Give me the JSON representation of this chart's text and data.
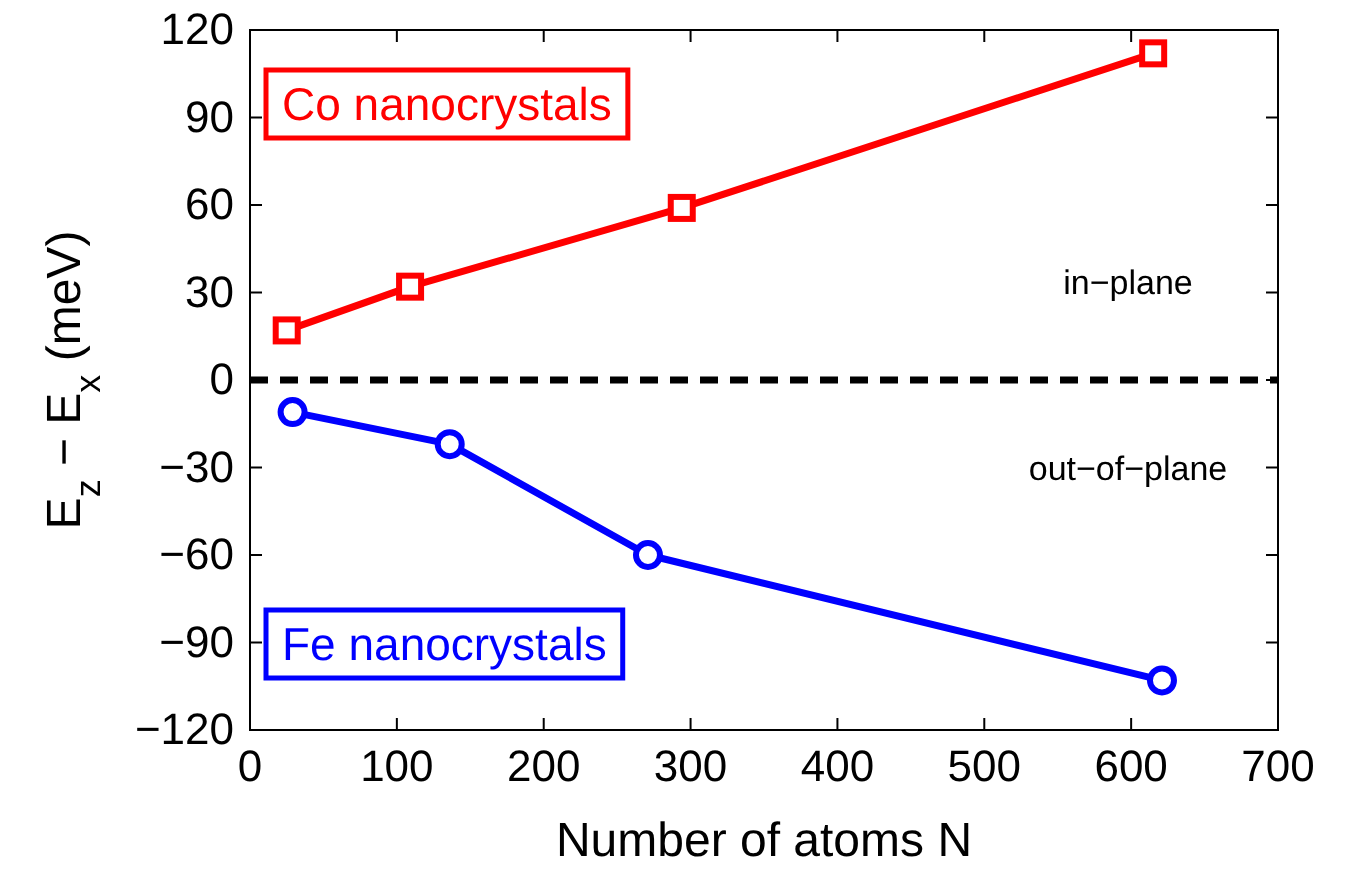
{
  "chart_data": {
    "type": "line",
    "xlabel": "Number of atoms N",
    "ylabel": "E$_{z}$ − E$_{x}$ (meV)",
    "xlim": [
      0,
      700
    ],
    "xticks": [
      0,
      100,
      200,
      300,
      400,
      500,
      600,
      700
    ],
    "ylim": [
      -120,
      120
    ],
    "yticks": [
      {
        "value": -120,
        "label": "−120"
      },
      {
        "value": -90,
        "label": "−90"
      },
      {
        "value": -60,
        "label": "−60"
      },
      {
        "value": -30,
        "label": "−30"
      },
      0,
      30,
      60,
      90,
      120
    ],
    "series": [
      {
        "name": "Co nanocrystals",
        "color": "#ff0000",
        "marker": "square",
        "x": [
          25,
          109,
          294,
          615
        ],
        "values": [
          17,
          32,
          59,
          112
        ]
      },
      {
        "name": "Fe nanocrystals",
        "color": "#0000ff",
        "marker": "circle",
        "x": [
          29,
          136,
          271,
          621
        ],
        "values": [
          -11,
          -22,
          -60,
          -103
        ]
      }
    ],
    "line_style": "solid",
    "grid": false,
    "legend": false,
    "ref_lines": [
      {
        "axis": "y",
        "value": 0,
        "color": "#000000",
        "line_style": "dashed"
      }
    ],
    "annotations": [
      "in−plane",
      "out−of−plane"
    ]
  }
}
